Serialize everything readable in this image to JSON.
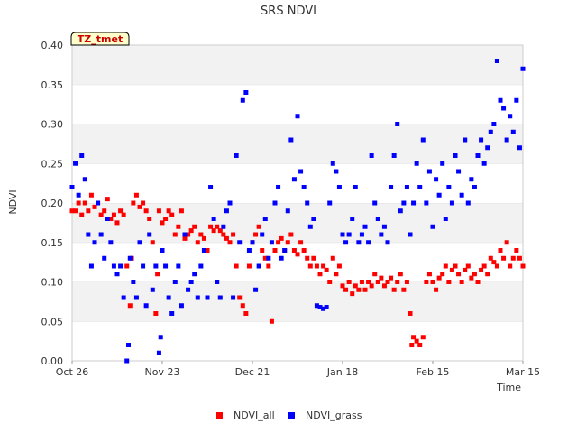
{
  "chart_data": {
    "type": "scatter",
    "title": "SRS NDVI",
    "xlabel": "Time",
    "ylabel": "NDVI",
    "badge": "TZ_tmet",
    "x_ticks": [
      "Oct 26",
      "Nov 23",
      "Dec 21",
      "Jan 18",
      "Feb 15",
      "Mar 15"
    ],
    "x_tick_days": [
      0,
      28,
      56,
      84,
      112,
      140
    ],
    "xlim_days": [
      0,
      140
    ],
    "ylim": [
      0,
      0.4
    ],
    "y_ticks": [
      "0.00",
      "0.05",
      "0.10",
      "0.15",
      "0.20",
      "0.25",
      "0.30",
      "0.35",
      "0.40"
    ],
    "y_tick_values": [
      0,
      0.05,
      0.1,
      0.15,
      0.2,
      0.25,
      0.3,
      0.35,
      0.4
    ],
    "grid": "horizontal bands",
    "legend_position": "bottom-center",
    "series": [
      {
        "name": "NDVI_all",
        "color": "#ff0000",
        "points": [
          [
            0,
            0.19
          ],
          [
            1,
            0.19
          ],
          [
            2,
            0.2
          ],
          [
            3,
            0.185
          ],
          [
            4,
            0.2
          ],
          [
            5,
            0.19
          ],
          [
            6,
            0.21
          ],
          [
            7,
            0.195
          ],
          [
            8,
            0.2
          ],
          [
            9,
            0.185
          ],
          [
            10,
            0.19
          ],
          [
            11,
            0.205
          ],
          [
            12,
            0.18
          ],
          [
            13,
            0.185
          ],
          [
            14,
            0.175
          ],
          [
            15,
            0.19
          ],
          [
            16,
            0.185
          ],
          [
            17,
            0.12
          ],
          [
            18,
            0.07
          ],
          [
            18.5,
            0.13
          ],
          [
            19,
            0.2
          ],
          [
            20,
            0.21
          ],
          [
            21,
            0.195
          ],
          [
            22,
            0.2
          ],
          [
            23,
            0.19
          ],
          [
            24,
            0.18
          ],
          [
            25,
            0.15
          ],
          [
            26,
            0.06
          ],
          [
            26.5,
            0.11
          ],
          [
            27,
            0.19
          ],
          [
            28,
            0.175
          ],
          [
            29,
            0.18
          ],
          [
            30,
            0.19
          ],
          [
            31,
            0.185
          ],
          [
            32,
            0.16
          ],
          [
            33,
            0.17
          ],
          [
            34,
            0.19
          ],
          [
            35,
            0.155
          ],
          [
            36,
            0.16
          ],
          [
            37,
            0.165
          ],
          [
            38,
            0.17
          ],
          [
            39,
            0.15
          ],
          [
            40,
            0.16
          ],
          [
            41,
            0.155
          ],
          [
            42,
            0.14
          ],
          [
            43,
            0.17
          ],
          [
            44,
            0.165
          ],
          [
            45,
            0.17
          ],
          [
            46,
            0.165
          ],
          [
            47,
            0.16
          ],
          [
            48,
            0.155
          ],
          [
            49,
            0.15
          ],
          [
            50,
            0.16
          ],
          [
            51,
            0.12
          ],
          [
            52,
            0.08
          ],
          [
            53,
            0.07
          ],
          [
            54,
            0.06
          ],
          [
            55,
            0.12
          ],
          [
            56,
            0.15
          ],
          [
            57,
            0.16
          ],
          [
            58,
            0.17
          ],
          [
            59,
            0.14
          ],
          [
            60,
            0.13
          ],
          [
            61,
            0.12
          ],
          [
            62,
            0.05
          ],
          [
            63,
            0.14
          ],
          [
            64,
            0.15
          ],
          [
            65,
            0.155
          ],
          [
            66,
            0.14
          ],
          [
            67,
            0.15
          ],
          [
            68,
            0.16
          ],
          [
            69,
            0.14
          ],
          [
            70,
            0.135
          ],
          [
            71,
            0.15
          ],
          [
            72,
            0.14
          ],
          [
            73,
            0.13
          ],
          [
            74,
            0.12
          ],
          [
            75,
            0.13
          ],
          [
            76,
            0.12
          ],
          [
            77,
            0.11
          ],
          [
            78,
            0.12
          ],
          [
            79,
            0.115
          ],
          [
            80,
            0.1
          ],
          [
            81,
            0.13
          ],
          [
            82,
            0.11
          ],
          [
            83,
            0.12
          ],
          [
            84,
            0.095
          ],
          [
            85,
            0.09
          ],
          [
            86,
            0.1
          ],
          [
            87,
            0.085
          ],
          [
            88,
            0.095
          ],
          [
            89,
            0.09
          ],
          [
            90,
            0.1
          ],
          [
            91,
            0.09
          ],
          [
            92,
            0.1
          ],
          [
            93,
            0.095
          ],
          [
            94,
            0.11
          ],
          [
            95,
            0.1
          ],
          [
            96,
            0.105
          ],
          [
            97,
            0.095
          ],
          [
            98,
            0.1
          ],
          [
            99,
            0.105
          ],
          [
            100,
            0.09
          ],
          [
            101,
            0.1
          ],
          [
            102,
            0.11
          ],
          [
            103,
            0.09
          ],
          [
            104,
            0.1
          ],
          [
            105,
            0.06
          ],
          [
            105.5,
            0.02
          ],
          [
            106,
            0.03
          ],
          [
            107,
            0.025
          ],
          [
            108,
            0.02
          ],
          [
            109,
            0.03
          ],
          [
            110,
            0.1
          ],
          [
            111,
            0.11
          ],
          [
            112,
            0.1
          ],
          [
            113,
            0.09
          ],
          [
            114,
            0.105
          ],
          [
            115,
            0.11
          ],
          [
            116,
            0.12
          ],
          [
            117,
            0.1
          ],
          [
            118,
            0.115
          ],
          [
            119,
            0.12
          ],
          [
            120,
            0.11
          ],
          [
            121,
            0.1
          ],
          [
            122,
            0.115
          ],
          [
            123,
            0.12
          ],
          [
            124,
            0.105
          ],
          [
            125,
            0.11
          ],
          [
            126,
            0.1
          ],
          [
            127,
            0.115
          ],
          [
            128,
            0.12
          ],
          [
            129,
            0.11
          ],
          [
            130,
            0.13
          ],
          [
            131,
            0.125
          ],
          [
            132,
            0.12
          ],
          [
            133,
            0.14
          ],
          [
            134,
            0.13
          ],
          [
            135,
            0.15
          ],
          [
            136,
            0.12
          ],
          [
            137,
            0.13
          ],
          [
            138,
            0.14
          ],
          [
            139,
            0.13
          ],
          [
            140,
            0.12
          ]
        ]
      },
      {
        "name": "NDVI_grass",
        "color": "#0000ff",
        "points": [
          [
            0,
            0.22
          ],
          [
            1,
            0.25
          ],
          [
            2,
            0.21
          ],
          [
            3,
            0.26
          ],
          [
            4,
            0.23
          ],
          [
            5,
            0.16
          ],
          [
            6,
            0.12
          ],
          [
            7,
            0.15
          ],
          [
            8,
            0.2
          ],
          [
            9,
            0.16
          ],
          [
            10,
            0.13
          ],
          [
            11,
            0.18
          ],
          [
            12,
            0.15
          ],
          [
            13,
            0.12
          ],
          [
            14,
            0.11
          ],
          [
            15,
            0.12
          ],
          [
            16,
            0.08
          ],
          [
            17,
            0.0
          ],
          [
            17.5,
            0.02
          ],
          [
            18,
            0.13
          ],
          [
            19,
            0.1
          ],
          [
            20,
            0.08
          ],
          [
            21,
            0.15
          ],
          [
            22,
            0.12
          ],
          [
            23,
            0.07
          ],
          [
            24,
            0.16
          ],
          [
            25,
            0.09
          ],
          [
            26,
            0.12
          ],
          [
            27,
            0.01
          ],
          [
            27.5,
            0.03
          ],
          [
            28,
            0.14
          ],
          [
            29,
            0.12
          ],
          [
            30,
            0.08
          ],
          [
            31,
            0.06
          ],
          [
            32,
            0.1
          ],
          [
            33,
            0.12
          ],
          [
            34,
            0.07
          ],
          [
            35,
            0.16
          ],
          [
            36,
            0.09
          ],
          [
            37,
            0.1
          ],
          [
            38,
            0.11
          ],
          [
            39,
            0.08
          ],
          [
            40,
            0.12
          ],
          [
            41,
            0.14
          ],
          [
            42,
            0.08
          ],
          [
            43,
            0.22
          ],
          [
            44,
            0.18
          ],
          [
            45,
            0.1
          ],
          [
            46,
            0.08
          ],
          [
            47,
            0.17
          ],
          [
            48,
            0.19
          ],
          [
            49,
            0.2
          ],
          [
            50,
            0.08
          ],
          [
            51,
            0.26
          ],
          [
            52,
            0.15
          ],
          [
            53,
            0.33
          ],
          [
            54,
            0.34
          ],
          [
            55,
            0.14
          ],
          [
            56,
            0.15
          ],
          [
            57,
            0.09
          ],
          [
            58,
            0.12
          ],
          [
            59,
            0.16
          ],
          [
            60,
            0.18
          ],
          [
            61,
            0.13
          ],
          [
            62,
            0.15
          ],
          [
            63,
            0.2
          ],
          [
            64,
            0.22
          ],
          [
            65,
            0.13
          ],
          [
            66,
            0.14
          ],
          [
            67,
            0.19
          ],
          [
            68,
            0.28
          ],
          [
            69,
            0.23
          ],
          [
            70,
            0.31
          ],
          [
            71,
            0.24
          ],
          [
            72,
            0.22
          ],
          [
            73,
            0.2
          ],
          [
            74,
            0.17
          ],
          [
            75,
            0.18
          ],
          [
            76,
            0.07
          ],
          [
            77,
            0.068
          ],
          [
            78,
            0.066
          ],
          [
            79,
            0.068
          ],
          [
            80,
            0.2
          ],
          [
            81,
            0.25
          ],
          [
            82,
            0.24
          ],
          [
            83,
            0.22
          ],
          [
            84,
            0.16
          ],
          [
            85,
            0.15
          ],
          [
            86,
            0.16
          ],
          [
            87,
            0.18
          ],
          [
            88,
            0.22
          ],
          [
            89,
            0.15
          ],
          [
            90,
            0.16
          ],
          [
            91,
            0.17
          ],
          [
            92,
            0.15
          ],
          [
            93,
            0.26
          ],
          [
            94,
            0.2
          ],
          [
            95,
            0.18
          ],
          [
            96,
            0.16
          ],
          [
            97,
            0.17
          ],
          [
            98,
            0.15
          ],
          [
            99,
            0.22
          ],
          [
            100,
            0.26
          ],
          [
            101,
            0.3
          ],
          [
            102,
            0.19
          ],
          [
            103,
            0.2
          ],
          [
            104,
            0.22
          ],
          [
            105,
            0.16
          ],
          [
            106,
            0.2
          ],
          [
            107,
            0.25
          ],
          [
            108,
            0.22
          ],
          [
            109,
            0.28
          ],
          [
            110,
            0.2
          ],
          [
            111,
            0.24
          ],
          [
            112,
            0.17
          ],
          [
            113,
            0.23
          ],
          [
            114,
            0.21
          ],
          [
            115,
            0.25
          ],
          [
            116,
            0.18
          ],
          [
            117,
            0.22
          ],
          [
            118,
            0.2
          ],
          [
            119,
            0.26
          ],
          [
            120,
            0.24
          ],
          [
            121,
            0.21
          ],
          [
            122,
            0.28
          ],
          [
            123,
            0.2
          ],
          [
            124,
            0.23
          ],
          [
            125,
            0.22
          ],
          [
            126,
            0.26
          ],
          [
            127,
            0.28
          ],
          [
            128,
            0.25
          ],
          [
            129,
            0.27
          ],
          [
            130,
            0.29
          ],
          [
            131,
            0.3
          ],
          [
            132,
            0.38
          ],
          [
            133,
            0.33
          ],
          [
            134,
            0.32
          ],
          [
            135,
            0.28
          ],
          [
            136,
            0.31
          ],
          [
            137,
            0.29
          ],
          [
            138,
            0.33
          ],
          [
            139,
            0.27
          ],
          [
            140,
            0.37
          ]
        ]
      }
    ]
  }
}
